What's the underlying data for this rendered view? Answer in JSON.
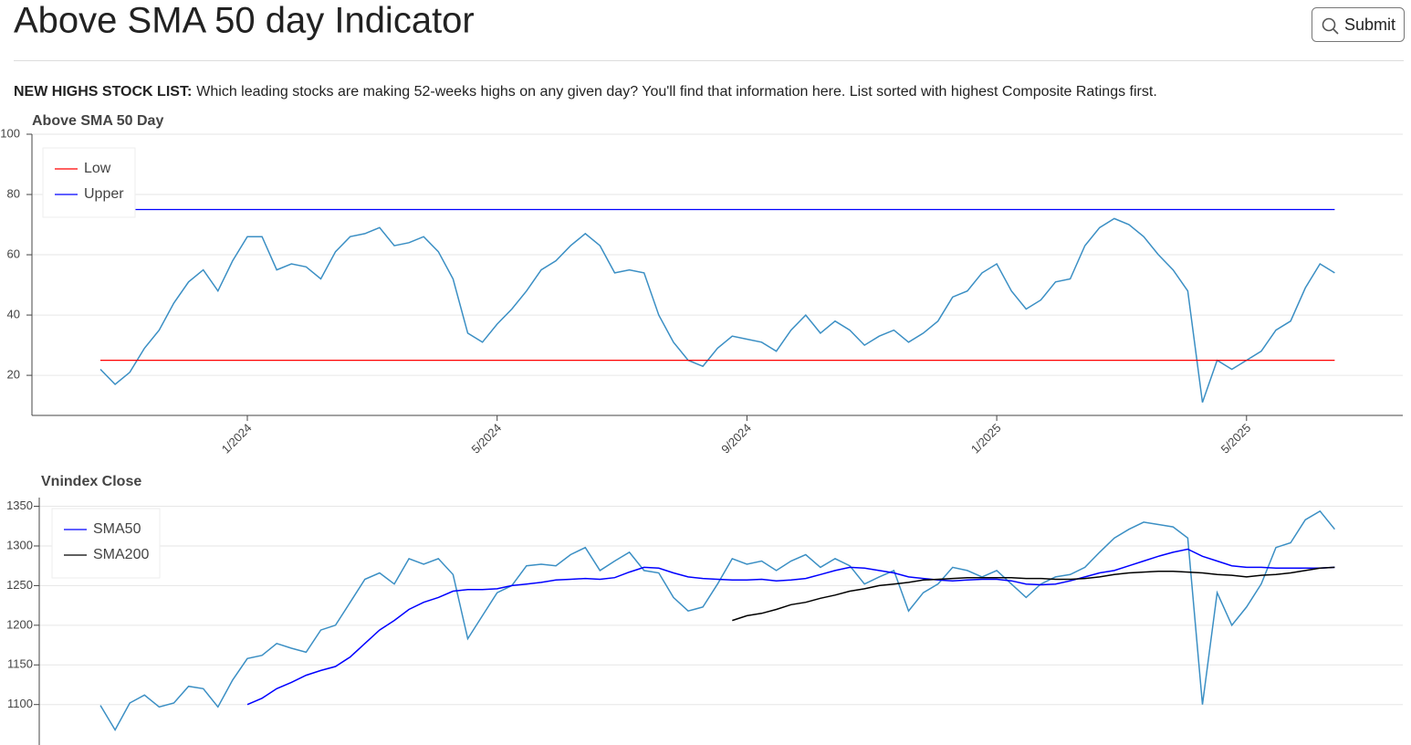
{
  "header": {
    "title": "Above SMA 50 day Indicator",
    "button": "Submit"
  },
  "intro": {
    "lead": "NEW HIGHS STOCK LIST:",
    "text": "Which leading stocks are making 52-weeks highs on any given day? You'll find that information here. List sorted with highest Composite Ratings first."
  },
  "chart_data": [
    {
      "type": "line",
      "title": "Above SMA 50 Day",
      "categories": [
        null,
        null,
        null,
        null,
        null,
        null,
        null,
        null,
        null,
        null,
        "1/2024",
        null,
        null,
        null,
        null,
        null,
        null,
        null,
        null,
        null,
        null,
        null,
        null,
        null,
        null,
        null,
        null,
        "5/2024",
        null,
        null,
        null,
        null,
        null,
        null,
        null,
        null,
        null,
        null,
        null,
        null,
        null,
        null,
        null,
        null,
        "9/2024",
        null,
        null,
        null,
        null,
        null,
        null,
        null,
        null,
        null,
        null,
        null,
        null,
        null,
        null,
        null,
        null,
        "1/2025",
        null,
        null,
        null,
        null,
        null,
        null,
        null,
        null,
        null,
        null,
        null,
        null,
        null,
        null,
        null,
        null,
        "5/2025",
        null,
        null,
        null,
        null,
        null,
        null
      ],
      "series": [
        {
          "color": "#3b8fc4",
          "values": [
            22,
            17,
            21,
            29,
            35,
            44,
            51,
            55,
            48,
            58,
            66,
            66,
            55,
            57,
            56,
            52,
            61,
            66,
            67,
            69,
            63,
            64,
            66,
            61,
            52,
            34,
            31,
            37,
            42,
            48,
            55,
            58,
            63,
            67,
            63,
            54,
            55,
            54,
            40,
            31,
            25,
            23,
            29,
            33,
            32,
            31,
            28,
            35,
            40,
            34,
            38,
            35,
            30,
            33,
            35,
            31,
            34,
            38,
            46,
            48,
            54,
            57,
            48,
            42,
            45,
            51,
            52,
            63,
            69,
            72,
            70,
            66,
            60,
            55,
            48,
            11,
            25,
            22,
            25,
            28,
            35,
            38,
            49,
            57,
            54
          ]
        },
        {
          "name": "Low",
          "color": "#ff0000",
          "value": 25
        },
        {
          "name": "Upper",
          "color": "#0000ff",
          "value": 75
        }
      ],
      "ylim": [
        6.7,
        100
      ],
      "yticks": [
        20,
        40,
        60,
        80,
        100
      ],
      "grid": true
    },
    {
      "type": "line",
      "title": "Vnindex Close",
      "series": [
        {
          "color": "#3b8fc4",
          "values": [
            1099,
            1068,
            1102,
            1112,
            1097,
            1102,
            1123,
            1120,
            1097,
            1131,
            1158,
            1162,
            1177,
            1171,
            1166,
            1194,
            1200,
            1229,
            1258,
            1266,
            1252,
            1284,
            1277,
            1284,
            1264,
            1183,
            1212,
            1241,
            1250,
            1275,
            1277,
            1275,
            1289,
            1298,
            1269,
            1281,
            1292,
            1269,
            1266,
            1235,
            1218,
            1223,
            1252,
            1284,
            1277,
            1281,
            1269,
            1281,
            1289,
            1273,
            1284,
            1275,
            1252,
            1261,
            1269,
            1218,
            1241,
            1252,
            1273,
            1269,
            1261,
            1269,
            1252,
            1235,
            1252,
            1261,
            1264,
            1273,
            1292,
            1310,
            1321,
            1330,
            1327,
            1324,
            1310,
            1100,
            1241,
            1200,
            1223,
            1252,
            1298,
            1304,
            1333,
            1344,
            1321
          ]
        },
        {
          "name": "SMA50",
          "color": "#0000ff",
          "values": [
            null,
            null,
            null,
            null,
            null,
            null,
            null,
            null,
            null,
            null,
            1100,
            1108,
            1120,
            1128,
            1137,
            1143,
            1148,
            1160,
            1177,
            1194,
            1206,
            1220,
            1229,
            1235,
            1243,
            1245,
            1245,
            1246,
            1250,
            1252,
            1254,
            1257,
            1258,
            1259,
            1258,
            1260,
            1267,
            1273,
            1272,
            1266,
            1261,
            1259,
            1258,
            1257,
            1257,
            1258,
            1256,
            1257,
            1259,
            1264,
            1269,
            1273,
            1272,
            1269,
            1266,
            1261,
            1259,
            1257,
            1256,
            1257,
            1258,
            1258,
            1256,
            1252,
            1251,
            1252,
            1256,
            1261,
            1266,
            1269,
            1275,
            1281,
            1287,
            1292,
            1296,
            1287,
            1281,
            1275,
            1273,
            1273,
            1272,
            1272,
            1272,
            1272,
            1273
          ]
        },
        {
          "name": "SMA200",
          "color": "#000000",
          "values": [
            null,
            null,
            null,
            null,
            null,
            null,
            null,
            null,
            null,
            null,
            null,
            null,
            null,
            null,
            null,
            null,
            null,
            null,
            null,
            null,
            null,
            null,
            null,
            null,
            null,
            null,
            null,
            null,
            null,
            null,
            null,
            null,
            null,
            null,
            null,
            null,
            null,
            null,
            null,
            null,
            null,
            null,
            null,
            1206,
            1212,
            1215,
            1220,
            1226,
            1229,
            1234,
            1238,
            1243,
            1246,
            1250,
            1252,
            1254,
            1257,
            1258,
            1259,
            1260,
            1260,
            1260,
            1260,
            1259,
            1259,
            1258,
            1258,
            1259,
            1261,
            1264,
            1266,
            1267,
            1268,
            1268,
            1267,
            1266,
            1264,
            1263,
            1261,
            1263,
            1264,
            1266,
            1269,
            1272,
            1273
          ]
        }
      ],
      "ylim": [
        1049,
        1361
      ],
      "yticks": [
        1100,
        1150,
        1200,
        1250,
        1300,
        1350
      ],
      "grid": true
    }
  ]
}
